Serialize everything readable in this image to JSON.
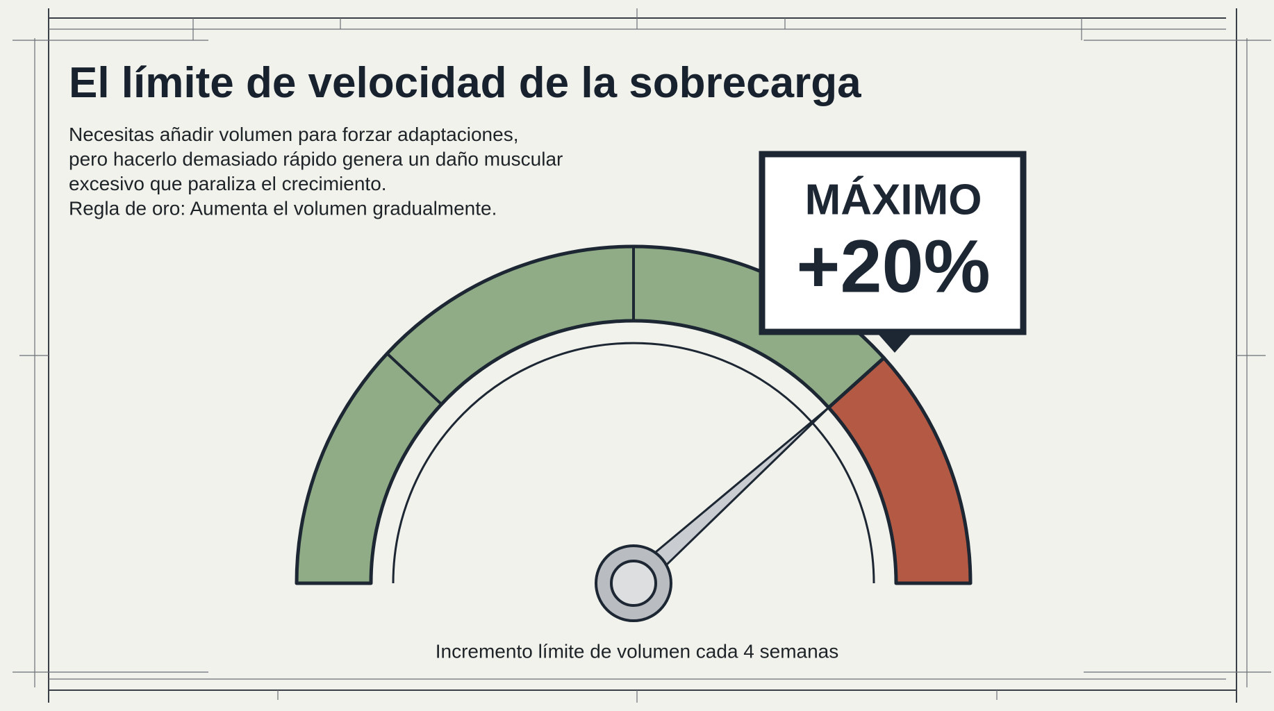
{
  "title": "El límite de velocidad de la sobrecarga",
  "description": [
    "Necesitas añadir volumen para forzar adaptaciones,",
    "pero hacerlo demasiado rápido genera un daño muscular",
    "excesivo que paraliza el crecimiento.",
    "Regla de oro: Aumenta el volumen gradualmente."
  ],
  "callout": {
    "label": "MÁXIMO",
    "value": "+20%"
  },
  "caption": "Incremento límite de volumen cada 4 semanas"
}
